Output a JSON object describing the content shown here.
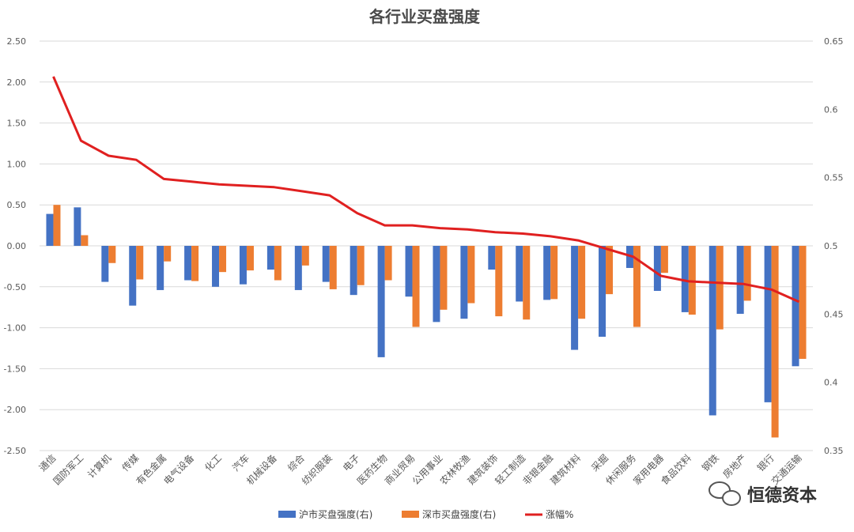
{
  "chart_data": {
    "type": "bar",
    "title": "各行业买盘强度",
    "xlabel": "",
    "ylabel": "",
    "categories": [
      "通信",
      "国防军工",
      "计算机",
      "传媒",
      "有色金属",
      "电气设备",
      "化工",
      "汽车",
      "机械设备",
      "综合",
      "纺织服装",
      "电子",
      "医药生物",
      "商业贸易",
      "公用事业",
      "农林牧渔",
      "建筑装饰",
      "轻工制造",
      "非银金融",
      "建筑材料",
      "采掘",
      "休闲服务",
      "家用电器",
      "食品饮料",
      "钢铁",
      "房地产",
      "银行",
      "交通运输"
    ],
    "left_axis": {
      "min": -2.5,
      "max": 2.5,
      "ticks": [
        "2.50",
        "2.00",
        "1.50",
        "1.00",
        "0.50",
        "0.00",
        "-0.50",
        "-1.00",
        "-1.50",
        "-2.00",
        "-2.50"
      ]
    },
    "right_axis": {
      "min": 0.35,
      "max": 0.65,
      "ticks": [
        "0.65",
        "0.6",
        "0.55",
        "0.5",
        "0.45",
        "0.4",
        "0.35"
      ]
    },
    "series": [
      {
        "name": "沪市买盘强度(右)",
        "kind": "bar",
        "axis": "left",
        "color": "#4472c4",
        "values": [
          0.39,
          0.47,
          -0.44,
          -0.73,
          -0.54,
          -0.42,
          -0.5,
          -0.47,
          -0.29,
          -0.54,
          -0.44,
          -0.6,
          -1.36,
          -0.62,
          -0.93,
          -0.89,
          -0.29,
          -0.68,
          -0.66,
          -1.27,
          -1.11,
          -0.27,
          -0.55,
          -0.81,
          -2.07,
          -0.83,
          -1.91,
          -1.47
        ]
      },
      {
        "name": "深市买盘强度(右)",
        "kind": "bar",
        "axis": "left",
        "color": "#ed7d31",
        "values": [
          0.5,
          0.13,
          -0.21,
          -0.41,
          -0.19,
          -0.43,
          -0.32,
          -0.3,
          -0.42,
          -0.24,
          -0.53,
          -0.48,
          -0.42,
          -0.99,
          -0.78,
          -0.7,
          -0.86,
          -0.9,
          -0.65,
          -0.89,
          -0.59,
          -0.99,
          -0.33,
          -0.84,
          -1.02,
          -0.67,
          -2.34,
          -1.38
        ]
      },
      {
        "name": "涨幅%",
        "kind": "line",
        "axis": "right",
        "color": "#e02020",
        "values": [
          0.624,
          0.577,
          0.566,
          0.563,
          0.549,
          0.547,
          0.545,
          0.544,
          0.543,
          0.54,
          0.537,
          0.524,
          0.515,
          0.515,
          0.513,
          0.512,
          0.51,
          0.509,
          0.507,
          0.504,
          0.498,
          0.492,
          0.478,
          0.474,
          0.473,
          0.472,
          0.468,
          0.459
        ]
      }
    ],
    "legend_position": "bottom",
    "grid": true
  },
  "watermark": {
    "text": "恒德资本"
  }
}
